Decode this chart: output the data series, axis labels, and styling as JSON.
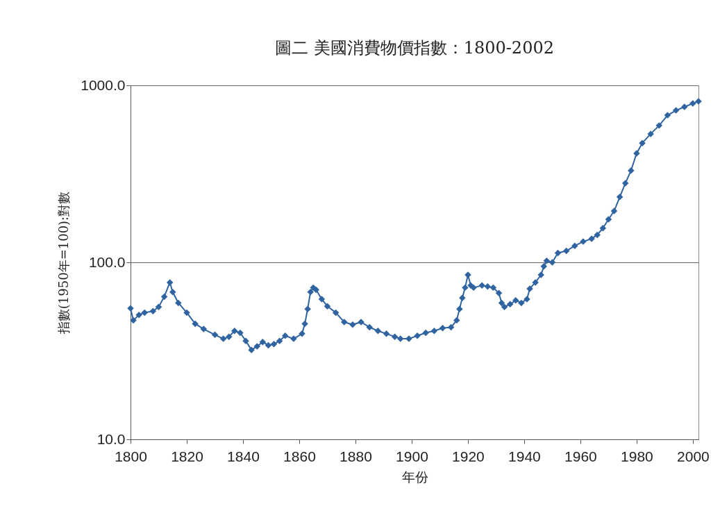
{
  "chart_data": {
    "type": "line",
    "title": "圖二 美國消費物價指數：1800-2002",
    "xlabel": "年份",
    "ylabel": "指數(1950年=100):對數",
    "x": [
      1800,
      1801,
      1803,
      1805,
      1808,
      1810,
      1812,
      1814,
      1815,
      1817,
      1820,
      1823,
      1826,
      1830,
      1833,
      1835,
      1837,
      1839,
      1841,
      1843,
      1845,
      1847,
      1849,
      1851,
      1853,
      1855,
      1858,
      1861,
      1862,
      1863,
      1864,
      1865,
      1866,
      1868,
      1870,
      1873,
      1876,
      1879,
      1882,
      1885,
      1888,
      1891,
      1894,
      1896,
      1899,
      1902,
      1905,
      1908,
      1911,
      1914,
      1916,
      1917,
      1918,
      1919,
      1920,
      1921,
      1922,
      1925,
      1927,
      1929,
      1931,
      1932,
      1933,
      1935,
      1937,
      1939,
      1941,
      1942,
      1944,
      1946,
      1947,
      1948,
      1950,
      1952,
      1955,
      1958,
      1961,
      1964,
      1966,
      1968,
      1970,
      1972,
      1974,
      1976,
      1978,
      1980,
      1982,
      1985,
      1988,
      1991,
      1994,
      1997,
      2000,
      2002
    ],
    "series": [
      {
        "color": "#2f64a0",
        "values": [
          55,
          47,
          50.5,
          52,
          53,
          56,
          64,
          77,
          68,
          59,
          52,
          45,
          42,
          39,
          37,
          38,
          41,
          40,
          36,
          32,
          33.5,
          35.5,
          34,
          34.5,
          36,
          38.5,
          37,
          39.5,
          45,
          54.5,
          68,
          72,
          70,
          62,
          56.5,
          52,
          46,
          44.5,
          46,
          43,
          41,
          39.5,
          38,
          37,
          37,
          38.5,
          40,
          41,
          42.5,
          43,
          47,
          54.5,
          63,
          72,
          85,
          74,
          72,
          74,
          73,
          72,
          67,
          59,
          56,
          58,
          61,
          59,
          62,
          71,
          77,
          85,
          95,
          102,
          100,
          113,
          116,
          124,
          131,
          136,
          143,
          156,
          175,
          195,
          234,
          280,
          330,
          413,
          472,
          532,
          593,
          678,
          722,
          756,
          790,
          812
        ]
      }
    ],
    "xlim": [
      1800,
      2002
    ],
    "xticks": [
      1800,
      1820,
      1840,
      1860,
      1880,
      1900,
      1920,
      1940,
      1960,
      1980,
      2000
    ],
    "ylim": [
      10,
      1000
    ],
    "yticks": [
      {
        "value": 10,
        "label": "10.0"
      },
      {
        "value": 100,
        "label": "100.0"
      },
      {
        "value": 1000,
        "label": "1000.0"
      }
    ],
    "log": true,
    "grid": "y",
    "marker": "diamond",
    "line_style": "solid",
    "legend": false
  }
}
